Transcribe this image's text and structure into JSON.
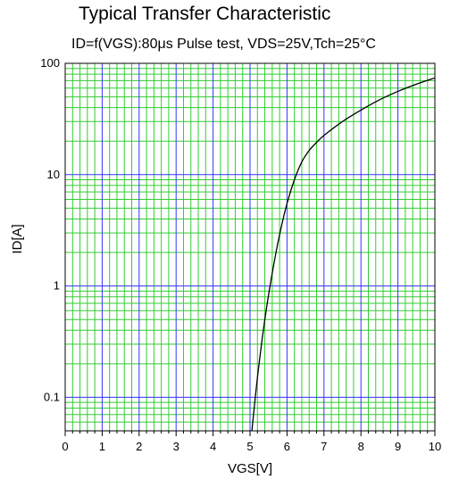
{
  "chart_data": {
    "type": "line",
    "title": "Typical Transfer Characteristic",
    "subtitle": "ID=f(VGS):80μs Pulse test, VDS=25V,Tch=25°C",
    "xlabel": "VGS[V]",
    "ylabel": "ID[A]",
    "xlim": [
      0,
      10
    ],
    "ylim": [
      0.05,
      100
    ],
    "yscale": "log",
    "grid": true,
    "x_ticks": [
      "0",
      "1",
      "2",
      "3",
      "4",
      "5",
      "6",
      "7",
      "8",
      "9",
      "10"
    ],
    "y_ticks": [
      "0.1",
      "1",
      "10",
      "100"
    ],
    "colors": {
      "major_grid": "#3333ff",
      "minor_grid": "#33cc33",
      "line": "#000000"
    },
    "series": [
      {
        "x": [
          5.05,
          5.2,
          5.4,
          5.6,
          5.8,
          6.0,
          6.2,
          6.4,
          6.6,
          6.8,
          7.0,
          7.5,
          8.0,
          8.5,
          9.0,
          9.5,
          10.0
        ],
        "y": [
          0.05,
          0.15,
          0.5,
          1.3,
          2.9,
          5.5,
          9.0,
          13.0,
          16.5,
          19.5,
          22.5,
          30,
          38,
          47,
          56,
          65,
          74
        ]
      }
    ]
  }
}
